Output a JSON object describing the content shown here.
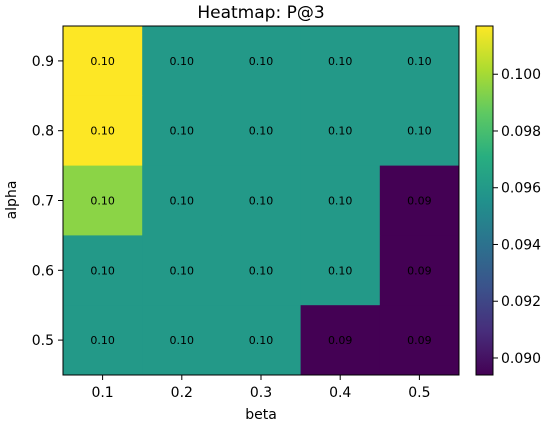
{
  "chart_data": {
    "type": "heatmap",
    "title": "Heatmap: P@3",
    "xlabel": "beta",
    "ylabel": "alpha",
    "x": [
      "0.1",
      "0.2",
      "0.3",
      "0.4",
      "0.5"
    ],
    "y": [
      "0.9",
      "0.8",
      "0.7",
      "0.6",
      "0.5"
    ],
    "values": [
      [
        0.1017,
        0.096,
        0.096,
        0.096,
        0.096
      ],
      [
        0.1017,
        0.096,
        0.096,
        0.096,
        0.096
      ],
      [
        0.0995,
        0.096,
        0.096,
        0.096,
        0.0894
      ],
      [
        0.096,
        0.096,
        0.096,
        0.096,
        0.0894
      ],
      [
        0.096,
        0.096,
        0.096,
        0.0894,
        0.0894
      ]
    ],
    "labels": [
      [
        "0.10",
        "0.10",
        "0.10",
        "0.10",
        "0.10"
      ],
      [
        "0.10",
        "0.10",
        "0.10",
        "0.10",
        "0.10"
      ],
      [
        "0.10",
        "0.10",
        "0.10",
        "0.10",
        "0.09"
      ],
      [
        "0.10",
        "0.10",
        "0.10",
        "0.10",
        "0.09"
      ],
      [
        "0.10",
        "0.10",
        "0.10",
        "0.09",
        "0.09"
      ]
    ],
    "colormap": "viridis",
    "colorbar": {
      "range": [
        0.0894,
        0.1017
      ],
      "ticks": [
        "0.090",
        "0.092",
        "0.094",
        "0.096",
        "0.098",
        "0.100"
      ],
      "tick_values": [
        0.09,
        0.092,
        0.094,
        0.096,
        0.098,
        0.1
      ]
    }
  }
}
